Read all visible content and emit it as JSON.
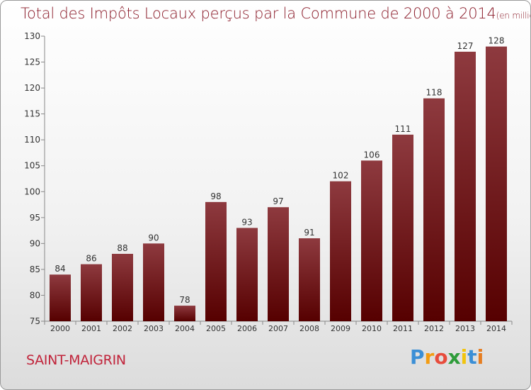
{
  "header": {
    "title": "Total des Impôts Locaux perçus par la Commune de 2000 à 2014",
    "unit": "(en milliers d'€)"
  },
  "footer": {
    "commune": "SAINT-MAIGRIN",
    "logo_letters": [
      "P",
      "r",
      "o",
      "x",
      "i",
      "t",
      "i"
    ],
    "logo_colors": [
      "#3b8fd6",
      "#f39c12",
      "#e74c3c",
      "#2e9c3a",
      "#f1c40f",
      "#3b8fd6",
      "#e67e22"
    ]
  },
  "colors": {
    "bar_top": "#8e3a3f",
    "bar_bottom": "#560000",
    "text": "#333333",
    "accent": "#8b1c2a"
  },
  "chart_data": {
    "type": "bar",
    "title": "Total des Impôts Locaux perçus par la Commune de 2000 à 2014",
    "ylabel": "en milliers d'€",
    "xlabel": "",
    "categories": [
      "2000",
      "2001",
      "2002",
      "2003",
      "2004",
      "2005",
      "2006",
      "2007",
      "2008",
      "2009",
      "2010",
      "2011",
      "2012",
      "2013",
      "2014"
    ],
    "values": [
      84,
      86,
      88,
      90,
      78,
      98,
      93,
      97,
      91,
      102,
      106,
      111,
      118,
      127,
      128
    ],
    "ylim": [
      75,
      130
    ],
    "yticks": [
      75,
      80,
      85,
      90,
      95,
      100,
      105,
      110,
      115,
      120,
      125,
      130
    ],
    "grid": false
  }
}
